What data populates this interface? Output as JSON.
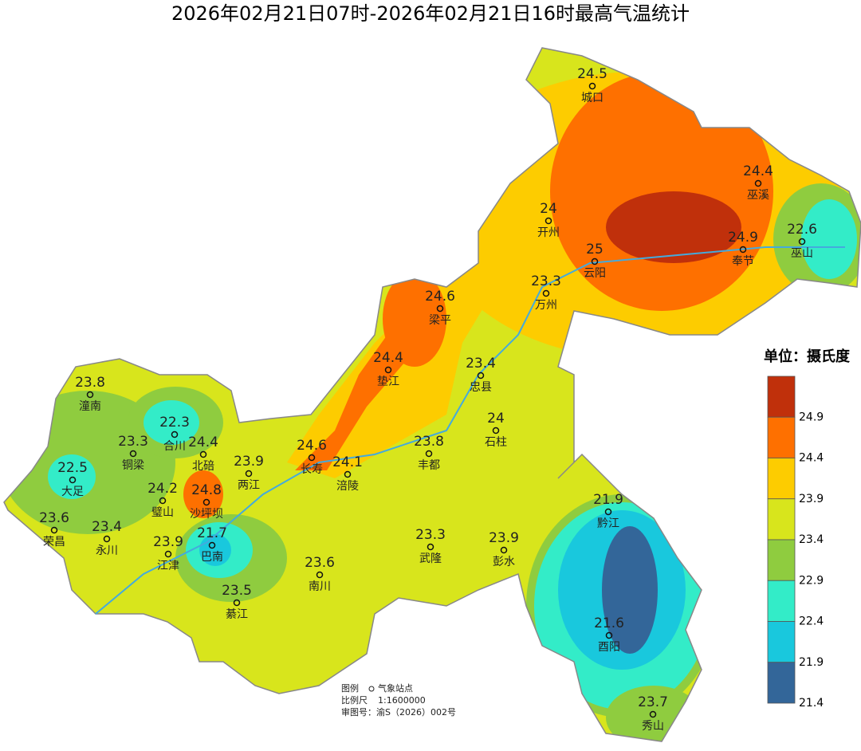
{
  "title": "2026年02月21日07时-2026年02月21日16时最高气温统计",
  "legend": {
    "unit": "单位：摄氏度",
    "ticks": [
      24.9,
      24.4,
      23.9,
      23.4,
      22.9,
      22.4,
      21.9,
      21.4
    ],
    "colors": [
      "#c0300b",
      "#fe7000",
      "#fdcc00",
      "#d8e51c",
      "#8fcc3f",
      "#33ecc8",
      "#19c8dd",
      "#336699"
    ]
  },
  "stations": [
    {
      "name": "城口",
      "value": 24.5
    },
    {
      "name": "巫溪",
      "value": 24.4
    },
    {
      "name": "开州",
      "value": 24
    },
    {
      "name": "巫山",
      "value": 22.6
    },
    {
      "name": "奉节",
      "value": 24.9
    },
    {
      "name": "云阳",
      "value": 25
    },
    {
      "name": "万州",
      "value": 23.3
    },
    {
      "name": "梁平",
      "value": 24.6
    },
    {
      "name": "垫江",
      "value": 24.4
    },
    {
      "name": "忠县",
      "value": 23.4
    },
    {
      "name": "潼南",
      "value": 23.8
    },
    {
      "name": "合川",
      "value": 22.3
    },
    {
      "name": "石柱",
      "value": 24
    },
    {
      "name": "铜梁",
      "value": 23.3
    },
    {
      "name": "北碚",
      "value": 24.4
    },
    {
      "name": "长寿",
      "value": 24.6
    },
    {
      "name": "两江",
      "value": 23.9
    },
    {
      "name": "涪陵",
      "value": 24.1
    },
    {
      "name": "丰都",
      "value": 23.8
    },
    {
      "name": "大足",
      "value": 22.5
    },
    {
      "name": "璧山",
      "value": 24.2
    },
    {
      "name": "沙坪坝",
      "value": 24.8
    },
    {
      "name": "黔江",
      "value": 21.9
    },
    {
      "name": "荣昌",
      "value": 23.6
    },
    {
      "name": "永川",
      "value": 23.4
    },
    {
      "name": "巴南",
      "value": 21.7
    },
    {
      "name": "武隆",
      "value": 23.3
    },
    {
      "name": "彭水",
      "value": 23.9
    },
    {
      "name": "江津",
      "value": 23.9
    },
    {
      "name": "南川",
      "value": 23.6
    },
    {
      "name": "綦江",
      "value": 23.5
    },
    {
      "name": "酉阳",
      "value": 21.6
    },
    {
      "name": "秀山",
      "value": 23.7
    }
  ],
  "notes": [
    "图例",
    "气象站点",
    "比例尺",
    "1:1600000",
    "审图号：渝S（2026）002号"
  ]
}
